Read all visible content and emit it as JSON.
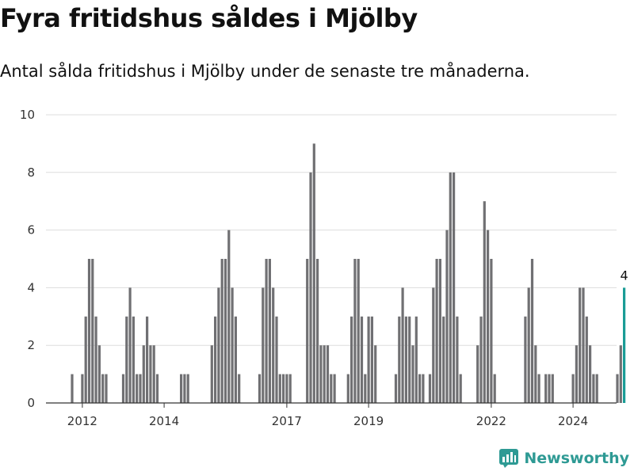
{
  "header": {
    "title": "Fyra fritidshus såldes i Mjölby",
    "subtitle": "Antal sålda fritidshus i Mjölby under de senaste tre månaderna."
  },
  "brand": {
    "name": "Newsworthy"
  },
  "colors": {
    "bar": "#707073",
    "highlight": "#1a9c96",
    "grid": "#dddddd",
    "axis": "#333333"
  },
  "chart_data": {
    "type": "bar",
    "title": "Fyra fritidshus såldes i Mjölby",
    "subtitle": "Antal sålda fritidshus i Mjölby under de senaste tre månaderna.",
    "xlabel": "",
    "ylabel": "",
    "ylim": [
      0,
      10
    ],
    "yticks": [
      0,
      2,
      4,
      6,
      8,
      10
    ],
    "grid": true,
    "x_start": "2011-10",
    "x_step": "month",
    "xticks": [
      {
        "label": "2012",
        "x": "2012-01"
      },
      {
        "label": "2014",
        "x": "2014-01"
      },
      {
        "label": "2017",
        "x": "2017-01"
      },
      {
        "label": "2019",
        "x": "2019-01"
      },
      {
        "label": "2022",
        "x": "2022-01"
      },
      {
        "label": "2024",
        "x": "2024-01"
      }
    ],
    "values": [
      1,
      0,
      0,
      1,
      3,
      5,
      5,
      3,
      2,
      1,
      1,
      0,
      0,
      0,
      0,
      1,
      3,
      4,
      3,
      1,
      1,
      2,
      3,
      2,
      2,
      1,
      0,
      0,
      0,
      0,
      0,
      0,
      1,
      1,
      1,
      0,
      0,
      0,
      0,
      0,
      0,
      2,
      3,
      4,
      5,
      5,
      6,
      4,
      3,
      1,
      0,
      0,
      0,
      0,
      0,
      1,
      4,
      5,
      5,
      4,
      3,
      1,
      1,
      1,
      1,
      0,
      0,
      0,
      0,
      5,
      8,
      9,
      5,
      2,
      2,
      2,
      1,
      1,
      0,
      0,
      0,
      1,
      3,
      5,
      5,
      3,
      1,
      3,
      3,
      2,
      0,
      0,
      0,
      0,
      0,
      1,
      3,
      4,
      3,
      3,
      2,
      3,
      1,
      1,
      0,
      1,
      4,
      5,
      5,
      3,
      6,
      8,
      8,
      3,
      1,
      0,
      0,
      0,
      0,
      2,
      3,
      7,
      6,
      5,
      1,
      0,
      0,
      0,
      0,
      0,
      0,
      0,
      0,
      3,
      4,
      5,
      2,
      1,
      0,
      1,
      1,
      1,
      0,
      0,
      0,
      0,
      0,
      1,
      2,
      4,
      4,
      3,
      2,
      1,
      1,
      0,
      0,
      0,
      0,
      0,
      1,
      2,
      4
    ],
    "highlight_last": true,
    "data_labels": [
      {
        "index": "last",
        "text": "4"
      }
    ]
  }
}
